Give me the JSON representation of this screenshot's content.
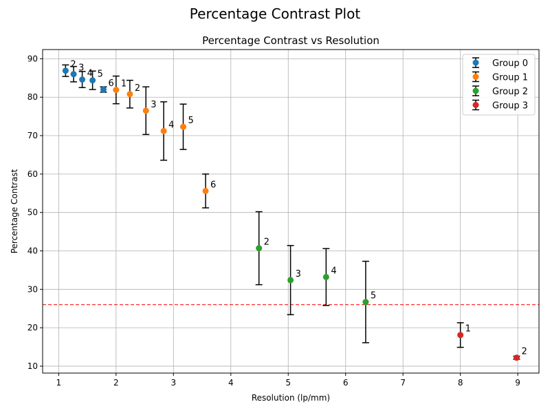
{
  "figure_title": "Percentage Contrast Plot",
  "chart_data": {
    "type": "scatter",
    "title": "Percentage Contrast vs Resolution",
    "xlabel": "Resolution (lp/mm)",
    "ylabel": "Percentage Contrast",
    "xlim": [
      0.72,
      9.37
    ],
    "ylim": [
      8.2,
      92.4
    ],
    "xticks": [
      1,
      2,
      3,
      4,
      5,
      6,
      7,
      8,
      9
    ],
    "yticks": [
      10,
      20,
      30,
      40,
      50,
      60,
      70,
      80,
      90
    ],
    "grid": true,
    "legend_position": "top-right",
    "reference_line": {
      "y": 26,
      "color": "#ff0000",
      "style": "dashed"
    },
    "series": [
      {
        "name": "Group 0",
        "color": "#1f77b4",
        "points": [
          {
            "x": 1.12,
            "y": 86.9,
            "err": 1.5,
            "label": "2"
          },
          {
            "x": 1.26,
            "y": 86.0,
            "err": 2.0,
            "label": "3"
          },
          {
            "x": 1.41,
            "y": 84.6,
            "err": 2.1,
            "label": "4"
          },
          {
            "x": 1.59,
            "y": 84.4,
            "err": 2.4,
            "label": "5"
          },
          {
            "x": 1.78,
            "y": 82.0,
            "err": 0.7,
            "label": "6"
          }
        ]
      },
      {
        "name": "Group 1",
        "color": "#ff7f0e",
        "points": [
          {
            "x": 2.0,
            "y": 81.9,
            "err": 3.6,
            "label": "1"
          },
          {
            "x": 2.24,
            "y": 80.8,
            "err": 3.6,
            "label": "2"
          },
          {
            "x": 2.52,
            "y": 76.5,
            "err": 6.2,
            "label": "3"
          },
          {
            "x": 2.83,
            "y": 71.2,
            "err": 7.6,
            "label": "4"
          },
          {
            "x": 3.17,
            "y": 72.3,
            "err": 5.9,
            "label": "5"
          },
          {
            "x": 3.56,
            "y": 55.6,
            "err": 4.4,
            "label": "6"
          }
        ]
      },
      {
        "name": "Group 2",
        "color": "#2ca02c",
        "points": [
          {
            "x": 4.49,
            "y": 40.7,
            "err": 9.5,
            "label": "2"
          },
          {
            "x": 5.04,
            "y": 32.4,
            "err": 9.0,
            "label": "3"
          },
          {
            "x": 5.66,
            "y": 33.2,
            "err": 7.4,
            "label": "4"
          },
          {
            "x": 6.35,
            "y": 26.7,
            "err": 10.6,
            "label": "5"
          }
        ]
      },
      {
        "name": "Group 3",
        "color": "#d62728",
        "points": [
          {
            "x": 8.0,
            "y": 18.1,
            "err": 3.2,
            "label": "1"
          },
          {
            "x": 8.98,
            "y": 12.2,
            "err": 0.4,
            "label": "2"
          }
        ]
      }
    ]
  }
}
